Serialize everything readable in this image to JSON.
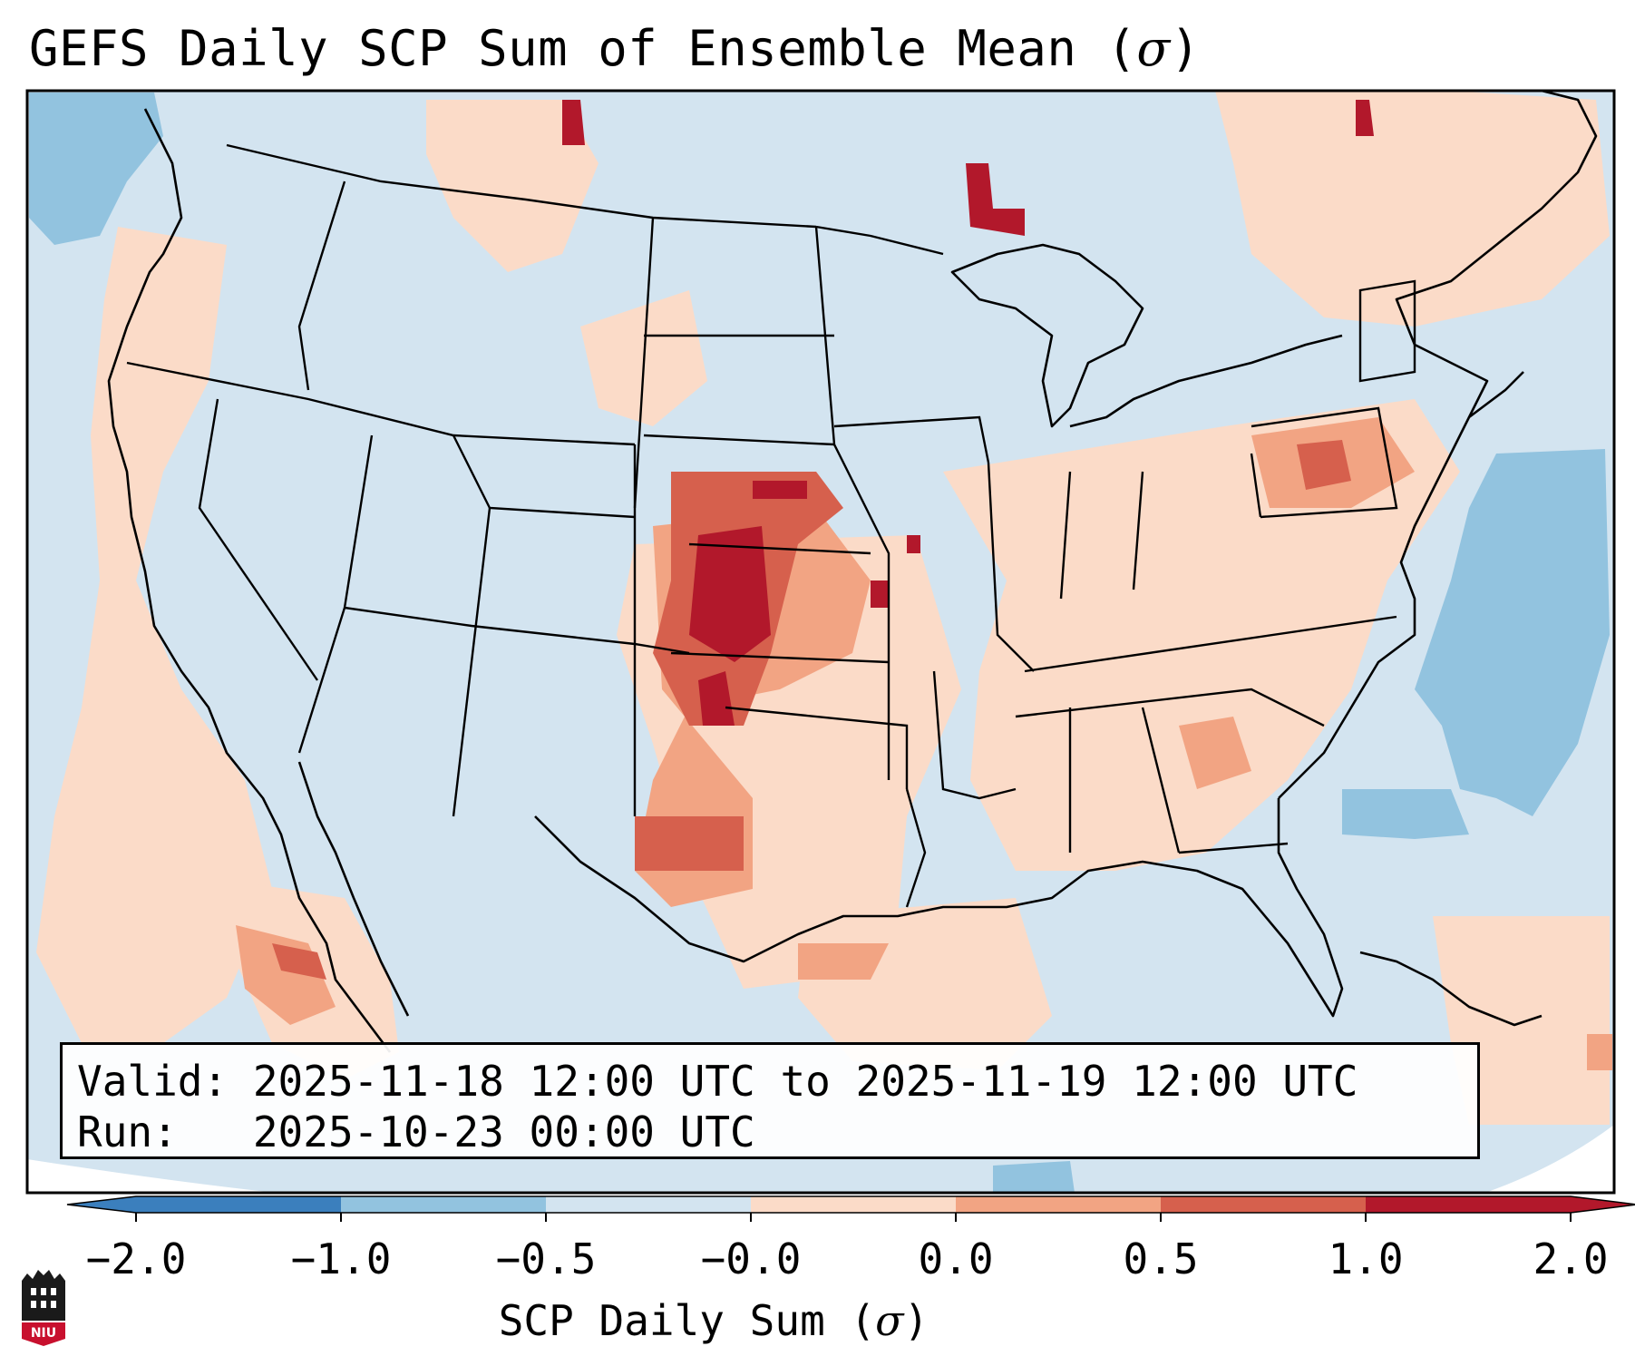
{
  "title": {
    "text": "GEFS Daily SCP Sum of Ensemble Mean (",
    "symbol": "σ",
    "close": ")"
  },
  "map": {
    "region": "Continental United States",
    "variable": "SCP Daily Sum of Ensemble Mean",
    "highlight_areas": [
      "Kansas",
      "Oklahoma Panhandle",
      "Nebraska",
      "West Texas",
      "Pennsylvania",
      "Gulf of California"
    ]
  },
  "info": {
    "valid_line": "Valid: 2025-11-18 12:00 UTC to 2025-11-19 12:00 UTC",
    "run_line": "Run:   2025-10-23 00:00 UTC"
  },
  "colorbar": {
    "ticks": [
      "−2.0",
      "−1.0",
      "−0.5",
      "−0.0",
      "0.0",
      "0.5",
      "1.0",
      "2.0"
    ],
    "colors": [
      "#3b7fbd",
      "#92c3df",
      "#d3e4f0",
      "#f7f7f7",
      "#fbdbc8",
      "#f2a483",
      "#d6604d",
      "#b2182b"
    ],
    "label_text": "SCP Daily Sum (",
    "label_symbol": "σ",
    "label_close": ")"
  },
  "logo": {
    "text": "NIU",
    "colors": {
      "shield": "#1a1a1a",
      "badge": "#c8102e"
    }
  }
}
